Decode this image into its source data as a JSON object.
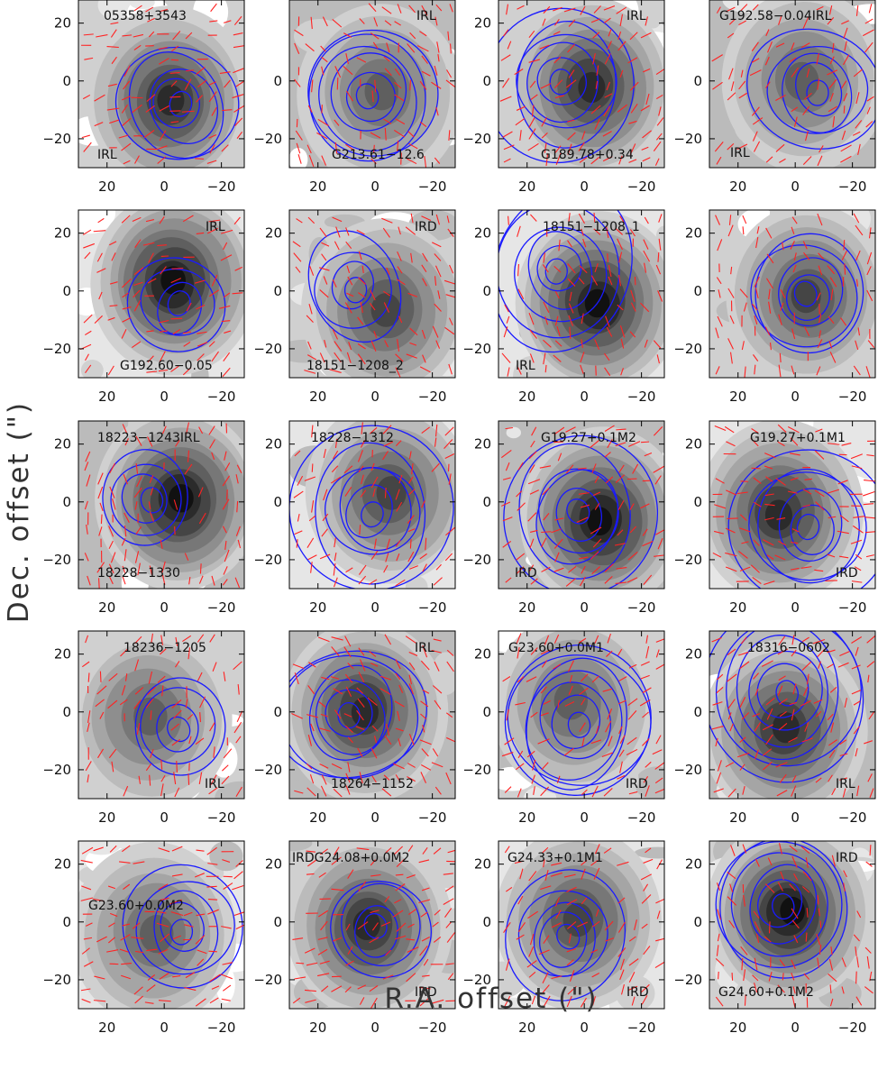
{
  "figure": {
    "xlabel": "R.A. offset (\")",
    "ylabel": "Dec. offset (\")"
  },
  "chart_data": {
    "type": "heatmap",
    "layout": "5 rows x 4 columns of map panels",
    "description_free": true,
    "xlabel": "R.A. offset (\")",
    "ylabel": "Dec. offset (\")",
    "x_inverted": true,
    "xlim": [
      30,
      -28
    ],
    "ylim": [
      -30,
      28
    ],
    "layers": {
      "image": "greyscale",
      "contours": "#1a1aff",
      "vectors": "#ff2222"
    },
    "panels": [
      {
        "labels": [
          "05358+3543",
          "IRL"
        ],
        "xticks": [
          20,
          0,
          -20
        ],
        "yticks": [
          20,
          0,
          -20
        ]
      },
      {
        "labels": [
          "IRL",
          "G213.61−12.6"
        ],
        "xticks": [
          20,
          0,
          -20
        ],
        "yticks": [
          0,
          -20
        ]
      },
      {
        "labels": [
          "IRL",
          "G189.78+0.34"
        ],
        "xticks": [
          20,
          0,
          -20
        ],
        "yticks": [
          20,
          0,
          -20
        ]
      },
      {
        "labels": [
          "G192.58−0.04IRL",
          "IRL"
        ],
        "xticks": [
          20,
          0,
          -20
        ],
        "yticks": [
          0,
          -20
        ]
      },
      {
        "labels": [
          "IRL",
          "G192.60−0.05"
        ],
        "xticks": [
          20,
          0,
          -20
        ],
        "yticks": [
          20,
          0,
          -20
        ]
      },
      {
        "labels": [
          "IRD",
          "18151−1208_2"
        ],
        "xticks": [
          20,
          0,
          -20
        ],
        "yticks": [
          20,
          0,
          -20
        ]
      },
      {
        "labels": [
          "18151−1208_1",
          "IRL"
        ],
        "xticks": [
          20,
          0,
          -20
        ],
        "yticks": [
          20,
          0,
          -20
        ]
      },
      {
        "labels": [],
        "xticks": [
          20,
          0,
          -20
        ],
        "yticks": [
          20,
          0,
          -20
        ]
      },
      {
        "labels": [
          "18223−1243IRL",
          "18228−1330"
        ],
        "xticks": [
          20,
          0,
          -20
        ],
        "yticks": [
          20,
          0,
          -20
        ]
      },
      {
        "labels": [
          "18228−1312"
        ],
        "xticks": [
          20,
          0,
          -20
        ],
        "yticks": [
          20,
          0,
          -20
        ]
      },
      {
        "labels": [
          "G19.27+0.1M2",
          "IRD"
        ],
        "xticks": [
          20,
          0,
          -20
        ],
        "yticks": [
          20,
          0,
          -20
        ]
      },
      {
        "labels": [
          "G19.27+0.1M1",
          "IRD"
        ],
        "xticks": [
          20,
          0,
          -20
        ],
        "yticks": [
          20,
          0,
          -20
        ]
      },
      {
        "labels": [
          "18236−1205",
          "IRL"
        ],
        "xticks": [
          20,
          0,
          -20
        ],
        "yticks": [
          20,
          0,
          -20
        ]
      },
      {
        "labels": [
          "IRL",
          "18264−1152"
        ],
        "xticks": [
          20,
          0,
          -20
        ],
        "yticks": [
          0,
          -20
        ]
      },
      {
        "labels": [
          "G23.60+0.0M1",
          "IRD"
        ],
        "xticks": [
          20,
          0,
          -20
        ],
        "yticks": [
          20,
          0,
          -20
        ]
      },
      {
        "labels": [
          "18316−0602",
          "IRL"
        ],
        "xticks": [
          20,
          0,
          -20
        ],
        "yticks": [
          20,
          0,
          -20
        ]
      },
      {
        "labels": [
          "G23.60+0.0M2"
        ],
        "xticks": [
          20,
          0,
          -20
        ],
        "yticks": [
          20,
          0,
          -20
        ]
      },
      {
        "labels": [
          "IRDG24.08+0.0M2",
          "IRD"
        ],
        "xticks": [
          20,
          0,
          -20
        ],
        "yticks": [
          20,
          0,
          -20
        ]
      },
      {
        "labels": [
          "G24.33+0.1M1",
          "IRD"
        ],
        "xticks": [
          20,
          0,
          -20
        ],
        "yticks": [
          20,
          0,
          -20
        ]
      },
      {
        "labels": [
          "IRD",
          "G24.60+0.1M2"
        ],
        "xticks": [
          20,
          0,
          -20
        ],
        "yticks": [
          20,
          0,
          -20
        ]
      }
    ]
  }
}
